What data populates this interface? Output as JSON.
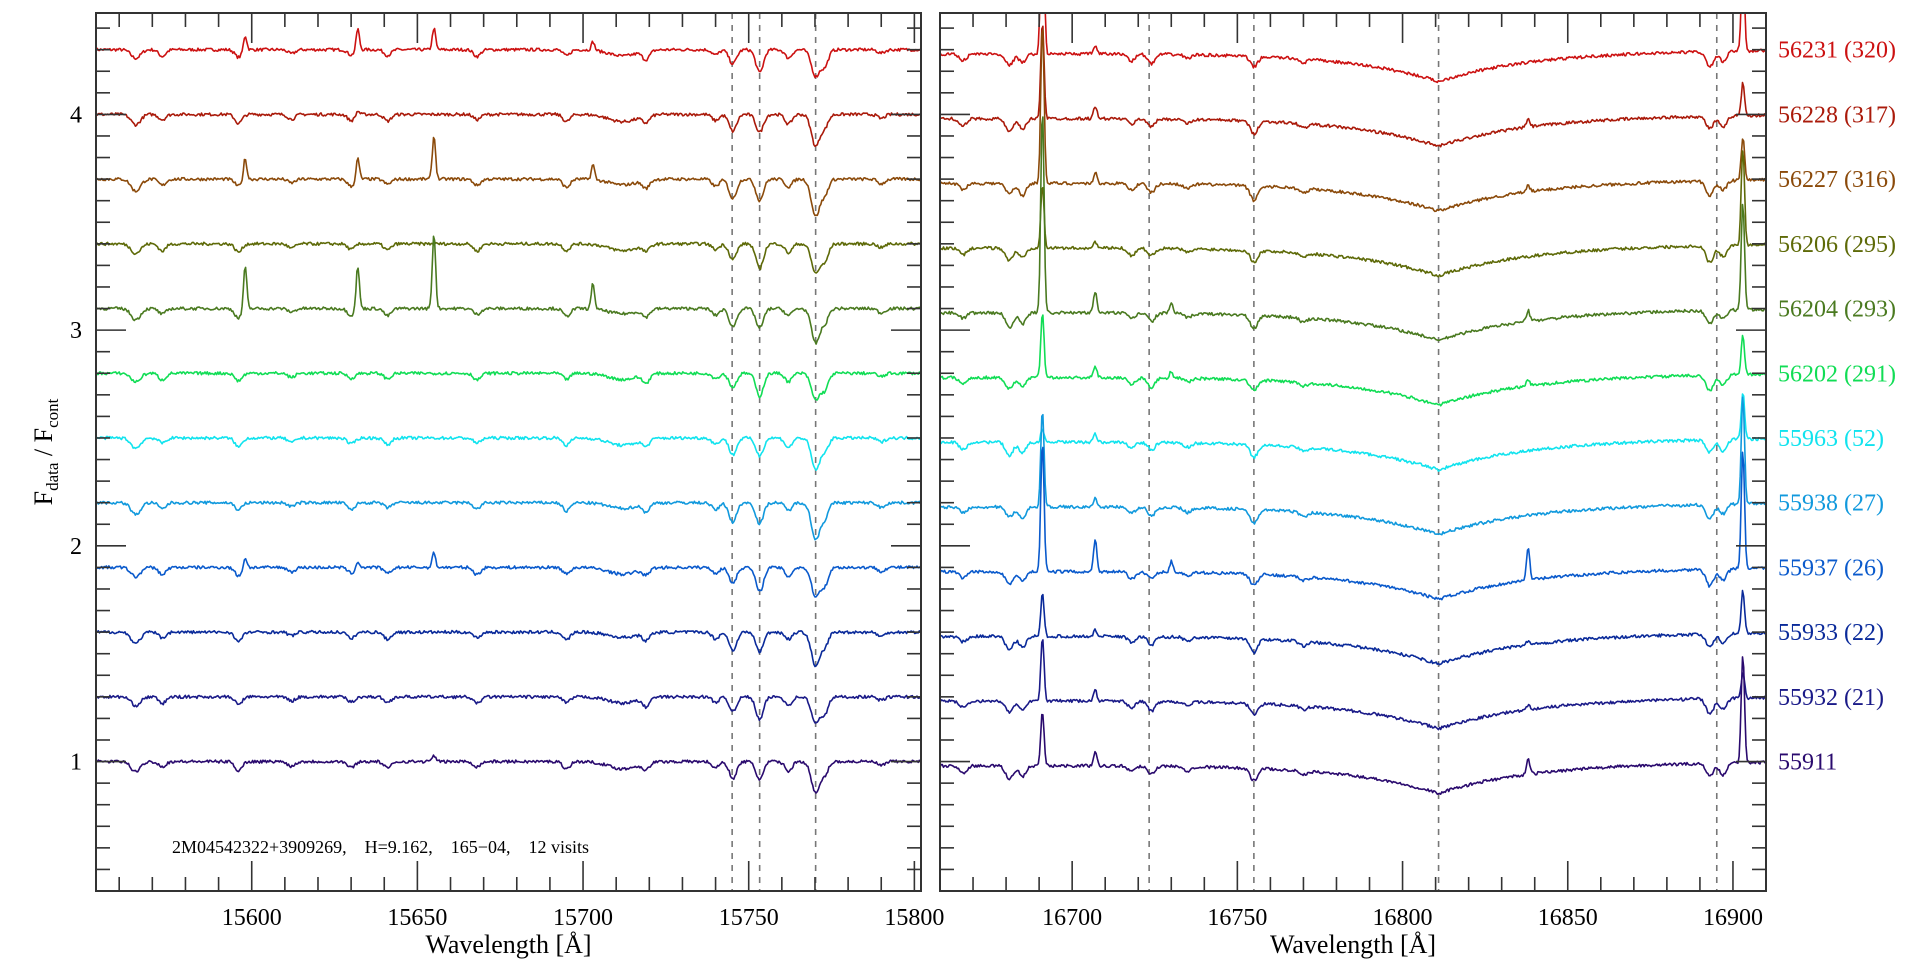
{
  "chart_data": {
    "type": "line",
    "ylabel_main": "F",
    "ylabel_sub1": "data",
    "ylabel_sep": " / F",
    "ylabel_sub2": "cont",
    "ylim": [
      0.4,
      4.47
    ],
    "y_ticks": [
      1,
      2,
      3,
      4
    ],
    "y_tick_labels": [
      "1",
      "2",
      "3",
      "4"
    ],
    "annotation": "2M04542322+3909269,    H=9.162,    165−04,    12 visits",
    "panels": [
      {
        "xlabel": "Wavelength [Å]",
        "xlim": [
          15553,
          15802
        ],
        "x_ticks": [
          15600,
          15650,
          15700,
          15750,
          15800
        ],
        "x_tick_labels": [
          "15600",
          "15650",
          "15700",
          "15750",
          "15800"
        ],
        "dashed_lines": [
          15745,
          15753.3,
          15770.2
        ],
        "absorption": [
          [
            15565,
            0.05,
            2
          ],
          [
            15573,
            0.03,
            1.5
          ],
          [
            15596,
            0.04,
            1.5
          ],
          [
            15612,
            0.02,
            1.5
          ],
          [
            15630,
            0.03,
            1.5
          ],
          [
            15641,
            0.03,
            1.5
          ],
          [
            15668,
            0.03,
            1.5
          ],
          [
            15695,
            0.035,
            1.5
          ],
          [
            15712,
            0.03,
            6
          ],
          [
            15719,
            0.035,
            1.5
          ],
          [
            15740,
            0.03,
            1.5
          ],
          [
            15745.2,
            0.08,
            1.6
          ],
          [
            15753.3,
            0.1,
            1.6
          ],
          [
            15762,
            0.04,
            1.5
          ],
          [
            15770.2,
            0.15,
            1.8
          ],
          [
            15773,
            0.07,
            1.5
          ],
          [
            15790,
            0.02,
            1.5
          ]
        ],
        "emission_lines": [
          15598,
          15632,
          15655,
          15703
        ]
      },
      {
        "xlabel": "Wavelength [Å]",
        "xlim": [
          16660,
          16910
        ],
        "x_ticks": [
          16700,
          16750,
          16800,
          16850,
          16900
        ],
        "x_tick_labels": [
          "16700",
          "16750",
          "16800",
          "16850",
          "16900"
        ],
        "dashed_lines": [
          16723.3,
          16755,
          16810.9,
          16895.1
        ],
        "absorption": [
          [
            16667,
            0.03,
            1.5
          ],
          [
            16681,
            0.06,
            1.6
          ],
          [
            16685,
            0.05,
            1.5
          ],
          [
            16718,
            0.03,
            1.5
          ],
          [
            16724,
            0.04,
            1.5
          ],
          [
            16735,
            0.02,
            1.5
          ],
          [
            16755,
            0.06,
            1.6
          ],
          [
            16770,
            0.02,
            1.5
          ],
          [
            16893,
            0.07,
            1.6
          ],
          [
            16897,
            0.05,
            1.5
          ]
        ],
        "broad_line": [
          16810.9,
          0.14,
          28
        ],
        "emission_lines": [
          16691,
          16707,
          16730,
          16838,
          16903
        ]
      }
    ],
    "series": [
      {
        "name": "56231 (320)",
        "offset": 4.3,
        "color": "#cc1111",
        "emission": [
          [
            0.07,
            0.1,
            0.1,
            0.04
          ],
          [
            0.9,
            0.04,
            0,
            0,
            0.4
          ]
        ]
      },
      {
        "name": "56228 (317)",
        "offset": 4.0,
        "color": "#aa1a0a",
        "emission": [
          [
            0,
            0.02,
            0,
            0
          ],
          [
            0.45,
            0.06,
            0,
            0.04,
            0.15
          ]
        ]
      },
      {
        "name": "56227 (316)",
        "offset": 3.7,
        "color": "#8b4a0a",
        "emission": [
          [
            0.1,
            0.1,
            0.2,
            0.07
          ],
          [
            0.75,
            0.05,
            0,
            0.03,
            0.2
          ]
        ]
      },
      {
        "name": "56206 (295)",
        "offset": 3.4,
        "color": "#5e6a08",
        "emission": [
          [
            0,
            0,
            0,
            0
          ],
          [
            0.3,
            0.03,
            0,
            0,
            0.45
          ]
        ]
      },
      {
        "name": "56204 (293)",
        "offset": 3.1,
        "color": "#4a7a20",
        "emission": [
          [
            0.2,
            0.2,
            0.35,
            0.12
          ],
          [
            0.95,
            0.1,
            0.05,
            0.05,
            0.5
          ]
        ]
      },
      {
        "name": "56202 (291)",
        "offset": 2.8,
        "color": "#11dd55",
        "emission": [
          [
            0,
            0,
            0,
            0
          ],
          [
            0.3,
            0.05,
            0.03,
            0.03,
            0.18
          ]
        ]
      },
      {
        "name": "55963 (52)",
        "offset": 2.5,
        "color": "#11e3ee",
        "emission": [
          [
            0,
            0,
            0,
            0
          ],
          [
            0.06,
            0.04,
            0,
            0,
            0.22
          ]
        ]
      },
      {
        "name": "55938 (27)",
        "offset": 2.2,
        "color": "#1199dd",
        "emission": [
          [
            0,
            0,
            0,
            0
          ],
          [
            0.45,
            0.04,
            0,
            0,
            0.5
          ]
        ]
      },
      {
        "name": "55937 (26)",
        "offset": 1.9,
        "color": "#0a5acc",
        "emission": [
          [
            0.05,
            0.03,
            0.07,
            0
          ],
          [
            0.6,
            0.15,
            0.05,
            0.15,
            0.55
          ]
        ]
      },
      {
        "name": "55933 (22)",
        "offset": 1.6,
        "color": "#0a2a9a",
        "emission": [
          [
            0,
            0,
            0,
            0
          ],
          [
            0.2,
            0.03,
            0,
            0.02,
            0.2
          ]
        ]
      },
      {
        "name": "55932 (21)",
        "offset": 1.3,
        "color": "#1a1a88",
        "emission": [
          [
            0,
            0,
            0,
            0
          ],
          [
            0.3,
            0.05,
            0,
            0.02,
            0.12
          ]
        ]
      },
      {
        "name": "55911",
        "offset": 1.0,
        "color": "#2a0a6e",
        "emission": [
          [
            0,
            0,
            0.03,
            0
          ],
          [
            0.25,
            0.07,
            0,
            0.07,
            0.5
          ]
        ]
      }
    ]
  }
}
